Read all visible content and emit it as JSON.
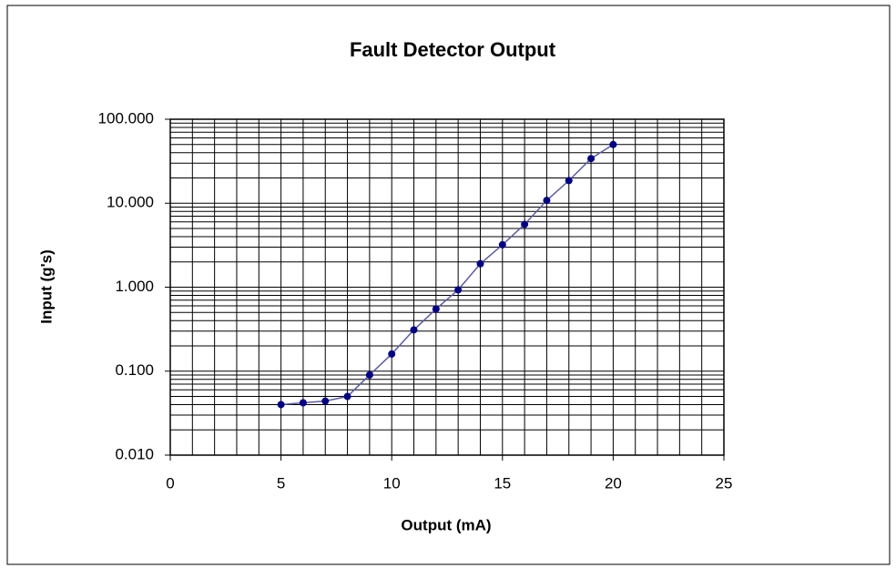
{
  "chart_data": {
    "type": "line",
    "title": "Fault Detector Output",
    "xlabel": "Output (mA)",
    "ylabel": "Input (g's)",
    "x": [
      5,
      6,
      7,
      8,
      9,
      10,
      11,
      12,
      13,
      14,
      15,
      16,
      17,
      18,
      19,
      20
    ],
    "series": [
      {
        "color": "#00008b",
        "line_color": "#5b5ba8",
        "values": [
          0.04,
          0.042,
          0.044,
          0.05,
          0.09,
          0.16,
          0.31,
          0.55,
          0.93,
          1.9,
          3.2,
          5.6,
          10.8,
          18.6,
          34,
          50
        ]
      }
    ],
    "xlim": [
      0,
      25
    ],
    "xticks": [
      0,
      5,
      10,
      15,
      20,
      25
    ],
    "x_minor_ticks": [
      1,
      2,
      3,
      4,
      6,
      7,
      8,
      9,
      11,
      12,
      13,
      14,
      16,
      17,
      18,
      19,
      21,
      22,
      23,
      24
    ],
    "ylim": [
      0.01,
      100
    ],
    "ylog": true,
    "yticks": [
      {
        "value": 0.01,
        "label": "0.010"
      },
      {
        "value": 0.1,
        "label": "0.100"
      },
      {
        "value": 1,
        "label": "1.000"
      },
      {
        "value": 10,
        "label": "10.000"
      },
      {
        "value": 100,
        "label": "100.000"
      }
    ],
    "y_minor_ticks": [
      0.02,
      0.03,
      0.04,
      0.05,
      0.06,
      0.07,
      0.08,
      0.09,
      0.2,
      0.3,
      0.4,
      0.5,
      0.6,
      0.7,
      0.8,
      0.9,
      2,
      3,
      4,
      5,
      6,
      7,
      8,
      9,
      20,
      30,
      40,
      50,
      60,
      70,
      80,
      90
    ],
    "grid": true
  }
}
